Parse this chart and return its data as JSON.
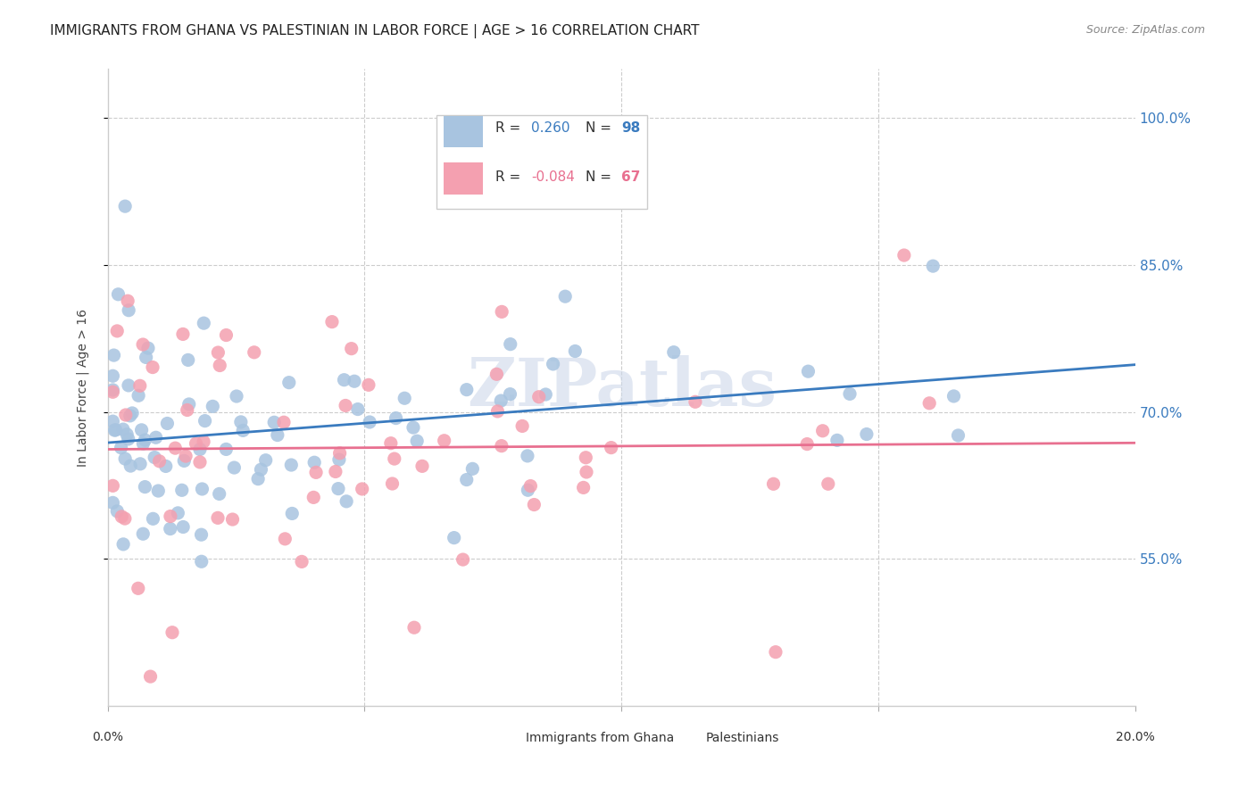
{
  "title": "IMMIGRANTS FROM GHANA VS PALESTINIAN IN LABOR FORCE | AGE > 16 CORRELATION CHART",
  "source": "Source: ZipAtlas.com",
  "ylabel": "In Labor Force | Age > 16",
  "yticks": [
    "55.0%",
    "70.0%",
    "85.0%",
    "100.0%"
  ],
  "ytick_vals": [
    0.55,
    0.7,
    0.85,
    1.0
  ],
  "xlim": [
    0.0,
    0.2
  ],
  "ylim": [
    0.4,
    1.05
  ],
  "ghana_R": 0.26,
  "ghana_N": 98,
  "pal_R": -0.084,
  "pal_N": 67,
  "ghana_color": "#a8c4e0",
  "pal_color": "#f4a0b0",
  "ghana_line_color": "#3a7bbf",
  "pal_line_color": "#e87090",
  "legend_label_ghana": "Immigrants from Ghana",
  "legend_label_pal": "Palestinians",
  "watermark": "ZIPatlas",
  "background_color": "#ffffff",
  "grid_color": "#cccccc",
  "title_fontsize": 11,
  "axis_label_fontsize": 10,
  "tick_fontsize": 10
}
